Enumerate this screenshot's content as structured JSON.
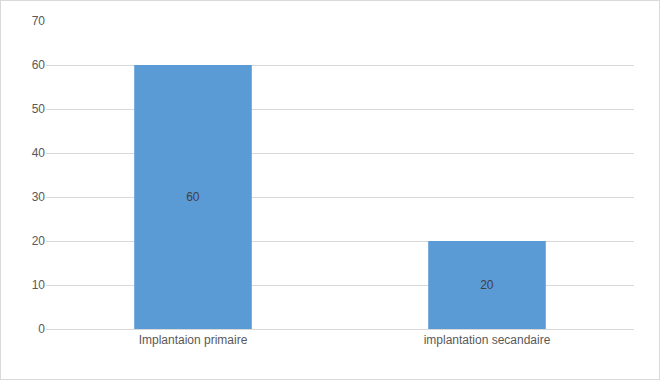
{
  "chart_data": {
    "type": "bar",
    "categories": [
      "Implantaion primaire",
      "implantation secandaire"
    ],
    "values": [
      60,
      20
    ],
    "color": "#5b9bd5",
    "ylim": [
      0,
      70
    ],
    "yticks": [
      0,
      10,
      20,
      30,
      40,
      50,
      60,
      70
    ],
    "grid": true,
    "data_labels": true
  }
}
